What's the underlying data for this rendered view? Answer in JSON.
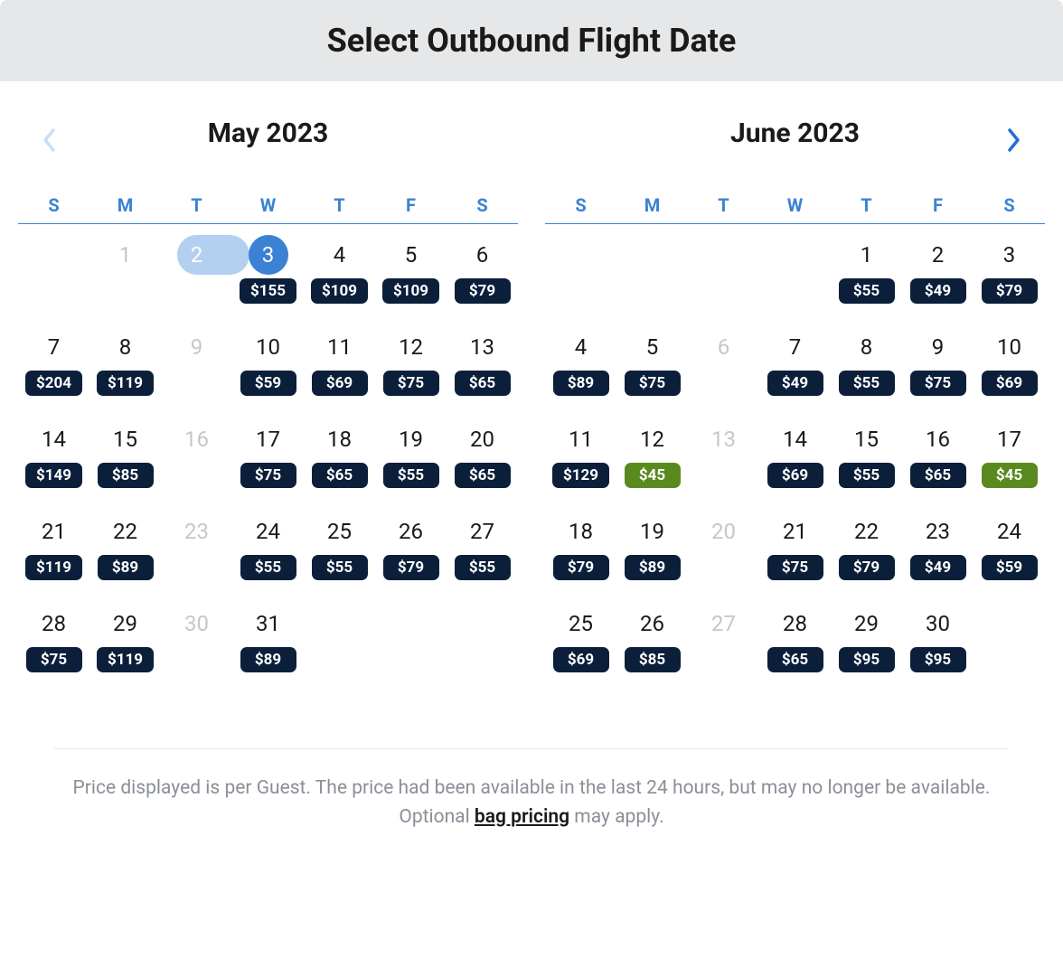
{
  "header": {
    "title": "Select Outbound Flight Date"
  },
  "colors": {
    "header_bg": "#e6e7e8",
    "accent": "#3b82d4",
    "price_bg": "#0b1f3a",
    "low_price_bg": "#5a8a1f",
    "disabled": "#c7c7c7",
    "today_bg": "#b3d0f0"
  },
  "weekdays": [
    "S",
    "M",
    "T",
    "W",
    "T",
    "F",
    "S"
  ],
  "months": [
    {
      "label": "May  2023",
      "leading_blanks": 1,
      "days": [
        {
          "n": 1,
          "disabled": true
        },
        {
          "n": 2,
          "today": true
        },
        {
          "n": 3,
          "selected": true,
          "price": "$155"
        },
        {
          "n": 4,
          "price": "$109"
        },
        {
          "n": 5,
          "price": "$109"
        },
        {
          "n": 6,
          "price": "$79"
        },
        {
          "n": 7,
          "price": "$204"
        },
        {
          "n": 8,
          "price": "$119"
        },
        {
          "n": 9,
          "disabled": true
        },
        {
          "n": 10,
          "price": "$59"
        },
        {
          "n": 11,
          "price": "$69"
        },
        {
          "n": 12,
          "price": "$75"
        },
        {
          "n": 13,
          "price": "$65"
        },
        {
          "n": 14,
          "price": "$149"
        },
        {
          "n": 15,
          "price": "$85"
        },
        {
          "n": 16,
          "disabled": true
        },
        {
          "n": 17,
          "price": "$75"
        },
        {
          "n": 18,
          "price": "$65"
        },
        {
          "n": 19,
          "price": "$55"
        },
        {
          "n": 20,
          "price": "$65"
        },
        {
          "n": 21,
          "price": "$119"
        },
        {
          "n": 22,
          "price": "$89"
        },
        {
          "n": 23,
          "disabled": true
        },
        {
          "n": 24,
          "price": "$55"
        },
        {
          "n": 25,
          "price": "$55"
        },
        {
          "n": 26,
          "price": "$79"
        },
        {
          "n": 27,
          "price": "$55"
        },
        {
          "n": 28,
          "price": "$75"
        },
        {
          "n": 29,
          "price": "$119"
        },
        {
          "n": 30,
          "disabled": true
        },
        {
          "n": 31,
          "price": "$89"
        }
      ]
    },
    {
      "label": "June  2023",
      "leading_blanks": 4,
      "days": [
        {
          "n": 1,
          "price": "$55"
        },
        {
          "n": 2,
          "price": "$49"
        },
        {
          "n": 3,
          "price": "$79"
        },
        {
          "n": 4,
          "price": "$89"
        },
        {
          "n": 5,
          "price": "$75"
        },
        {
          "n": 6,
          "disabled": true
        },
        {
          "n": 7,
          "price": "$49"
        },
        {
          "n": 8,
          "price": "$55"
        },
        {
          "n": 9,
          "price": "$75"
        },
        {
          "n": 10,
          "price": "$69"
        },
        {
          "n": 11,
          "price": "$129"
        },
        {
          "n": 12,
          "price": "$45",
          "low": true
        },
        {
          "n": 13,
          "disabled": true
        },
        {
          "n": 14,
          "price": "$69"
        },
        {
          "n": 15,
          "price": "$55"
        },
        {
          "n": 16,
          "price": "$65"
        },
        {
          "n": 17,
          "price": "$45",
          "low": true
        },
        {
          "n": 18,
          "price": "$79"
        },
        {
          "n": 19,
          "price": "$89"
        },
        {
          "n": 20,
          "disabled": true
        },
        {
          "n": 21,
          "price": "$75"
        },
        {
          "n": 22,
          "price": "$79"
        },
        {
          "n": 23,
          "price": "$49"
        },
        {
          "n": 24,
          "price": "$59"
        },
        {
          "n": 25,
          "price": "$69"
        },
        {
          "n": 26,
          "price": "$85"
        },
        {
          "n": 27,
          "disabled": true
        },
        {
          "n": 28,
          "price": "$65"
        },
        {
          "n": 29,
          "price": "$95"
        },
        {
          "n": 30,
          "price": "$95"
        }
      ]
    }
  ],
  "footer": {
    "text_before": "Price displayed is per Guest. The price had been available in the last 24 hours, but may no longer be available. Optional ",
    "link_text": "bag pricing",
    "text_after": " may apply."
  }
}
